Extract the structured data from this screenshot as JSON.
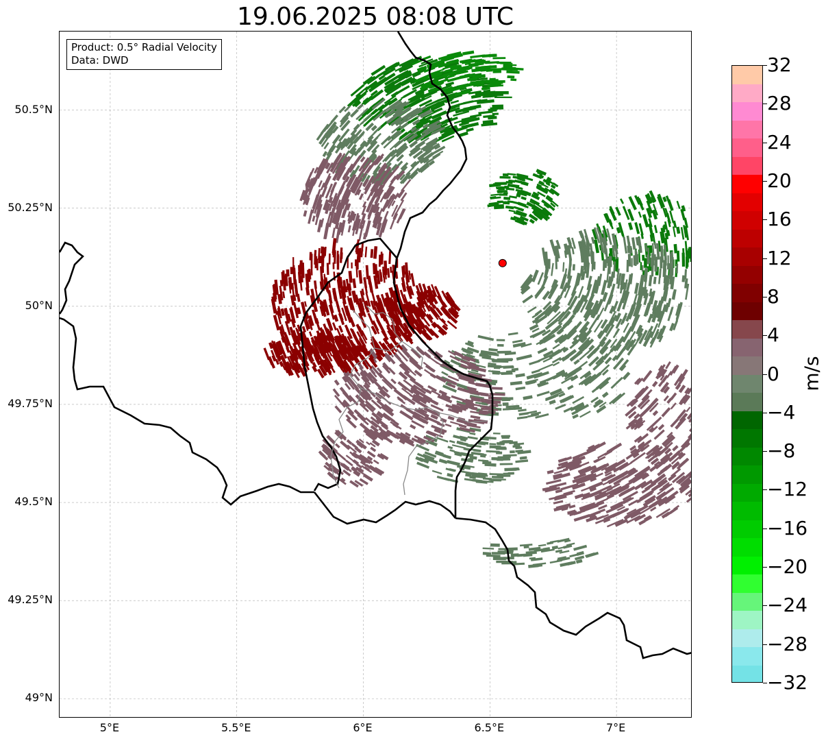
{
  "title": "19.06.2025 08:08 UTC",
  "info": {
    "product": "Product: 0.5° Radial Velocity",
    "data": "Data: DWD"
  },
  "axes": {
    "lat_ticks": [
      {
        "value": 50.5,
        "label": "50.5°N"
      },
      {
        "value": 50.25,
        "label": "50.25°N"
      },
      {
        "value": 50.0,
        "label": "50°N"
      },
      {
        "value": 49.75,
        "label": "49.75°N"
      },
      {
        "value": 49.5,
        "label": "49.5°N"
      },
      {
        "value": 49.25,
        "label": "49.25°N"
      },
      {
        "value": 49.0,
        "label": "49°N"
      }
    ],
    "lon_ticks": [
      {
        "value": 5.0,
        "label": "5°E"
      },
      {
        "value": 5.5,
        "label": "5.5°E"
      },
      {
        "value": 6.0,
        "label": "6°E"
      },
      {
        "value": 6.5,
        "label": "6.5°E"
      },
      {
        "value": 7.0,
        "label": "7°E"
      }
    ],
    "lon_range": [
      4.8,
      7.3
    ],
    "lat_range": [
      48.95,
      50.7
    ],
    "grid": true
  },
  "radar_site": {
    "lon": 6.55,
    "lat": 50.11,
    "color": "#ff0000"
  },
  "colorbar": {
    "label": "m/s",
    "min": -32,
    "max": 32,
    "ticks": [
      {
        "value": 32,
        "label": "32"
      },
      {
        "value": 28,
        "label": "28"
      },
      {
        "value": 24,
        "label": "24"
      },
      {
        "value": 20,
        "label": "20"
      },
      {
        "value": 16,
        "label": "16"
      },
      {
        "value": 12,
        "label": "12"
      },
      {
        "value": 8,
        "label": "8"
      },
      {
        "value": 4,
        "label": "4"
      },
      {
        "value": 0,
        "label": "0"
      },
      {
        "value": -4,
        "label": "−4"
      },
      {
        "value": -8,
        "label": "−8"
      },
      {
        "value": -12,
        "label": "−12"
      },
      {
        "value": -16,
        "label": "−16"
      },
      {
        "value": -20,
        "label": "−20"
      },
      {
        "value": -24,
        "label": "−24"
      },
      {
        "value": -28,
        "label": "−28"
      },
      {
        "value": -32,
        "label": "−32"
      }
    ],
    "colors_top_to_bottom": [
      "#ffcaa8",
      "#ffaac6",
      "#ff8ad2",
      "#ff75a8",
      "#ff5f8a",
      "#ff4566",
      "#ff0000",
      "#e30000",
      "#d00000",
      "#bd0000",
      "#a80000",
      "#940000",
      "#800000",
      "#6e0000",
      "#86474c",
      "#876470",
      "#877777",
      "#6f866e",
      "#5b7a58",
      "#006600",
      "#007700",
      "#008800",
      "#009900",
      "#00aa00",
      "#00bb00",
      "#00cc00",
      "#00dd00",
      "#00f000",
      "#30ff30",
      "#66f57a",
      "#9ef5c4",
      "#aeecec",
      "#8ae8ec",
      "#74e2e6"
    ]
  },
  "echo_colors": {
    "strong_receding": "#8b0000",
    "weak_receding": "#7f5a66",
    "weak_approaching": "#5f7d5f",
    "strong_approaching": "#0b7a0b"
  }
}
